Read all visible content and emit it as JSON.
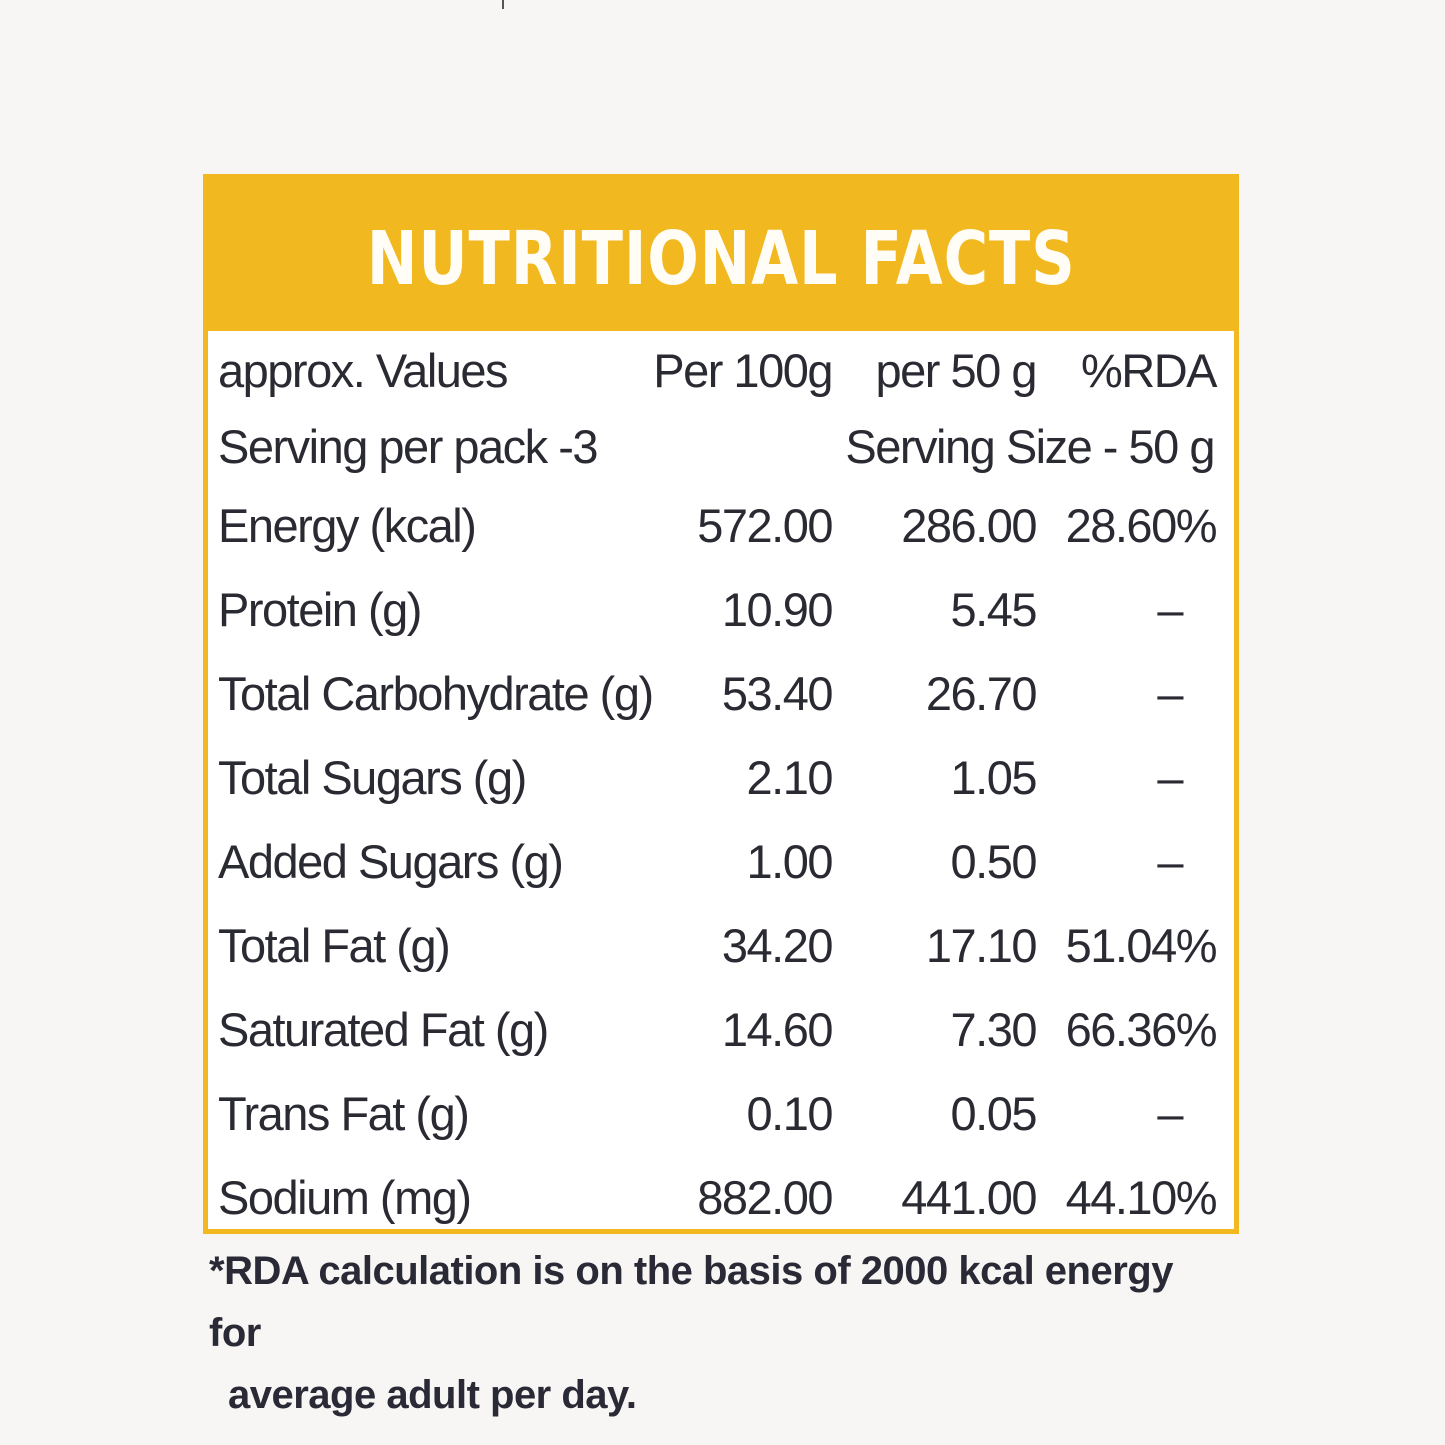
{
  "label": {
    "title": "NUTRITIONAL FACTS",
    "header": {
      "name": "approx. Values",
      "per_100g": "Per 100g",
      "per_50g": "per 50 g",
      "rda": "%RDA"
    },
    "serving": {
      "per_pack": "Serving per pack -3",
      "size": "Serving Size - 50 g"
    },
    "rows": [
      {
        "name": "Energy (kcal)",
        "per_100g": "572.00",
        "per_50g": "286.00",
        "rda": "28.60%"
      },
      {
        "name": "Protein (g)",
        "per_100g": "10.90",
        "per_50g": "5.45",
        "rda": "–"
      },
      {
        "name": "Total Carbohydrate (g)",
        "per_100g": "53.40",
        "per_50g": "26.70",
        "rda": "–"
      },
      {
        "name": "Total Sugars (g)",
        "per_100g": "2.10",
        "per_50g": "1.05",
        "rda": "–"
      },
      {
        "name": "Added Sugars (g)",
        "per_100g": "1.00",
        "per_50g": "0.50",
        "rda": "–"
      },
      {
        "name": "Total Fat (g)",
        "per_100g": "34.20",
        "per_50g": "17.10",
        "rda": "51.04%"
      },
      {
        "name": "Saturated Fat (g)",
        "per_100g": "14.60",
        "per_50g": "7.30",
        "rda": "66.36%"
      },
      {
        "name": "Trans Fat (g)",
        "per_100g": "0.10",
        "per_50g": "0.05",
        "rda": "–"
      },
      {
        "name": "Sodium (mg)",
        "per_100g": "882.00",
        "per_50g": "441.00",
        "rda": "44.10%"
      }
    ],
    "footnote_line1": "*RDA calculation is on the basis of 2000 kcal energy for",
    "footnote_line2": "average adult per day."
  },
  "colors": {
    "accent": "#f1b81f",
    "text": "#2a2a33",
    "background": "#f7f6f4"
  }
}
